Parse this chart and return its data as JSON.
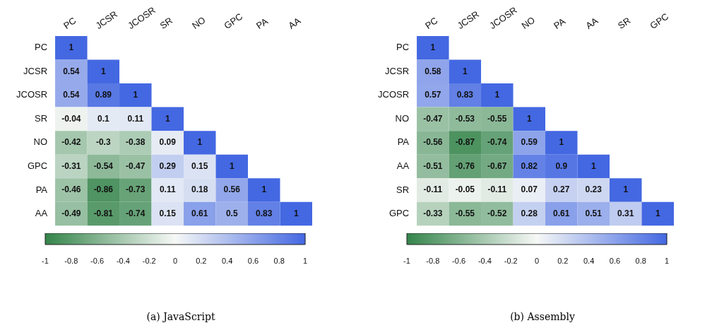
{
  "chart_data": [
    {
      "type": "heatmap",
      "categories": [
        "PC",
        "JCSR",
        "JCOSR",
        "SR",
        "NO",
        "GPC",
        "PA",
        "AA"
      ],
      "y_categories": [
        "PC",
        "JCSR",
        "JCOSR",
        "SR",
        "NO",
        "GPC",
        "PA",
        "AA"
      ],
      "cells": [
        [
          1,
          null,
          null,
          null,
          null,
          null,
          null,
          null
        ],
        [
          0.54,
          1,
          null,
          null,
          null,
          null,
          null,
          null
        ],
        [
          0.54,
          0.89,
          1,
          null,
          null,
          null,
          null,
          null
        ],
        [
          -0.04,
          0.1,
          0.11,
          1,
          null,
          null,
          null,
          null
        ],
        [
          -0.42,
          -0.3,
          -0.38,
          0.09,
          1,
          null,
          null,
          null
        ],
        [
          -0.31,
          -0.54,
          -0.47,
          0.29,
          0.15,
          1,
          null,
          null
        ],
        [
          -0.46,
          -0.86,
          -0.73,
          0.11,
          0.18,
          0.56,
          1,
          null
        ],
        [
          -0.49,
          -0.81,
          -0.74,
          0.15,
          0.61,
          0.5,
          0.83,
          1
        ]
      ],
      "data_labels": true,
      "clim": [
        -1,
        1
      ],
      "cticks": [
        -1,
        -0.8,
        -0.6,
        -0.4,
        -0.2,
        0,
        0.2,
        0.4,
        0.6,
        0.8,
        1
      ],
      "annotations": [
        "(a) JavaScript"
      ]
    },
    {
      "type": "heatmap",
      "categories": [
        "PC",
        "JCSR",
        "JCOSR",
        "NO",
        "PA",
        "AA",
        "SR",
        "GPC"
      ],
      "y_categories": [
        "PC",
        "JCSR",
        "JCOSR",
        "NO",
        "PA",
        "AA",
        "SR",
        "GPC"
      ],
      "cells": [
        [
          1,
          null,
          null,
          null,
          null,
          null,
          null,
          null
        ],
        [
          0.58,
          1,
          null,
          null,
          null,
          null,
          null,
          null
        ],
        [
          0.57,
          0.83,
          1,
          null,
          null,
          null,
          null,
          null
        ],
        [
          -0.47,
          -0.53,
          -0.55,
          1,
          null,
          null,
          null,
          null
        ],
        [
          -0.56,
          -0.87,
          -0.74,
          0.59,
          1,
          null,
          null,
          null
        ],
        [
          -0.51,
          -0.76,
          -0.67,
          0.82,
          0.9,
          1,
          null,
          null
        ],
        [
          -0.11,
          -0.05,
          -0.11,
          0.07,
          0.27,
          0.23,
          1,
          null
        ],
        [
          -0.33,
          -0.55,
          -0.52,
          0.28,
          0.61,
          0.51,
          0.31,
          1
        ]
      ],
      "data_labels": true,
      "clim": [
        -1,
        1
      ],
      "cticks": [
        -1,
        -0.8,
        -0.6,
        -0.4,
        -0.2,
        0,
        0.2,
        0.4,
        0.6,
        0.8,
        1
      ],
      "annotations": [
        "(b) Assembly"
      ]
    }
  ]
}
